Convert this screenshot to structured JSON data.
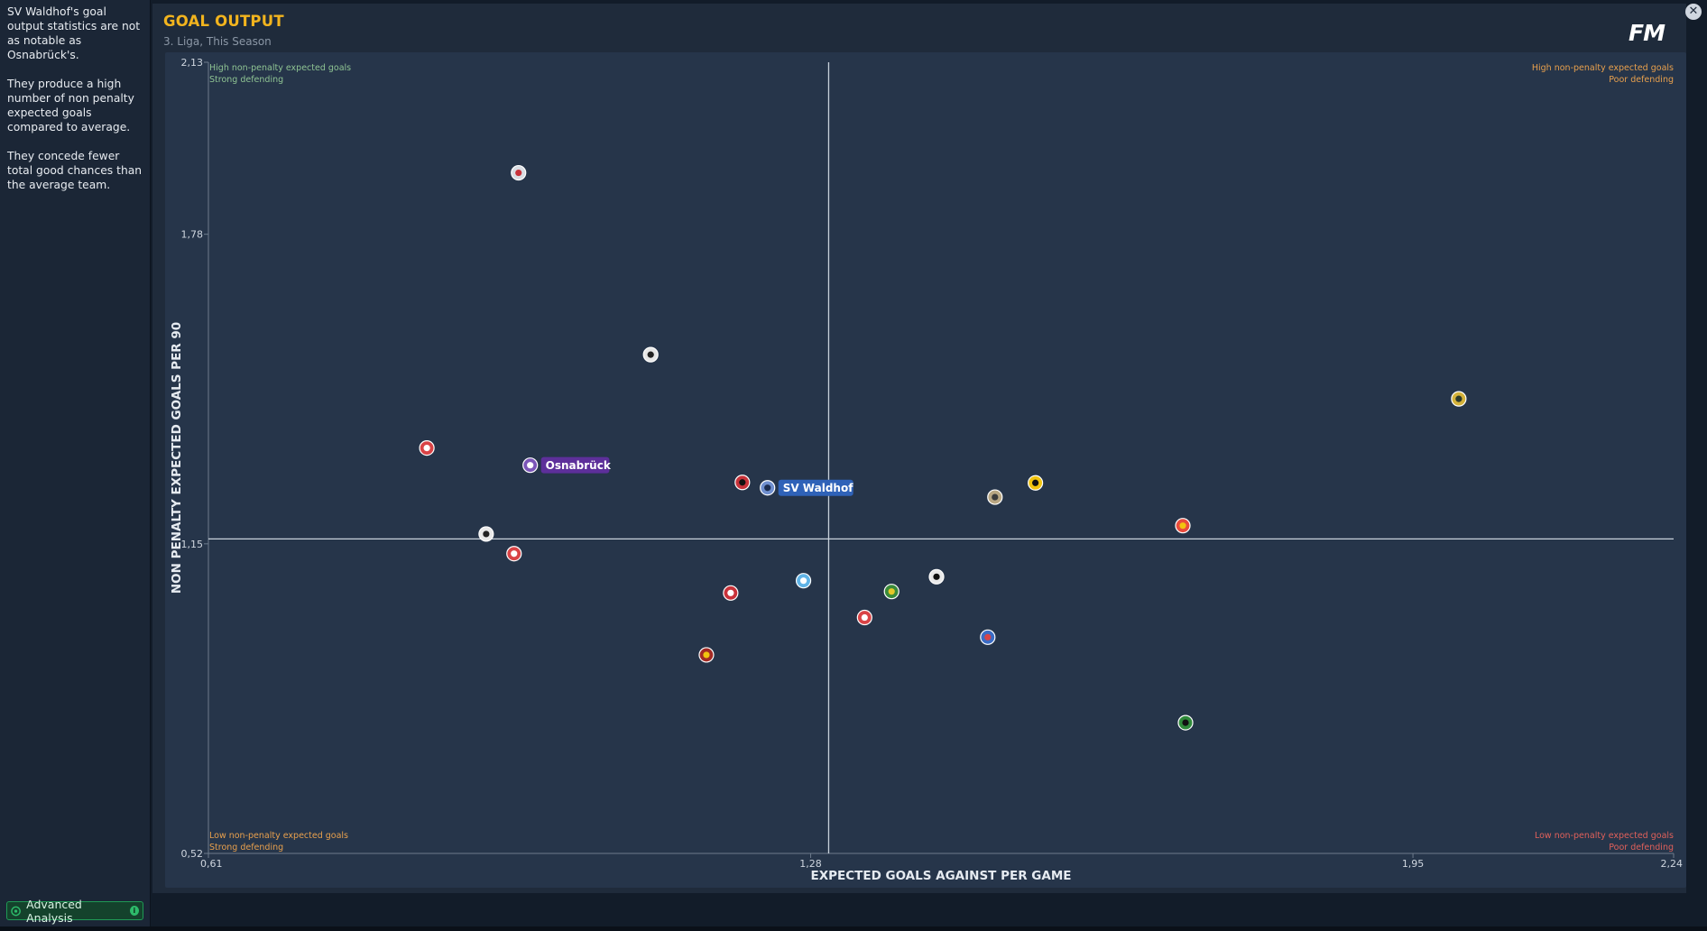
{
  "sidebar": {
    "insights": [
      "SV Waldhof's goal output statistics are not as notable as Osnabrück's.",
      "They produce a high number of non penalty expected goals compared to average.",
      "They concede fewer total good chances than the average team."
    ],
    "advanced_analysis_label": "Advanced Analysis"
  },
  "header": {
    "title": "GOAL OUTPUT",
    "subtitle": "3. Liga, This Season",
    "logo_text": "FM",
    "close_label": "✕"
  },
  "colors": {
    "title": "#f2b41e",
    "quad_good": "#8fc493",
    "quad_mid": "#e8a04d",
    "quad_bad": "#e0605a",
    "osnabruck_pill": "#5d2f9a",
    "waldhof_pill": "#2f62b8"
  },
  "chart_data": {
    "type": "scatter",
    "xlabel": "EXPECTED GOALS AGAINST PER GAME",
    "ylabel": "NON PENALTY EXPECTED GOALS PER 90",
    "xlim": [
      0.61,
      2.24
    ],
    "ylim": [
      0.52,
      2.13
    ],
    "x_ticks": [
      {
        "value": 0.61,
        "label": "0,61"
      },
      {
        "value": 1.28,
        "label": "1,28"
      },
      {
        "value": 1.95,
        "label": "1,95"
      },
      {
        "value": 2.24,
        "label": "2,24"
      }
    ],
    "y_ticks": [
      {
        "value": 0.52,
        "label": "0,52"
      },
      {
        "value": 1.15,
        "label": "1,15"
      },
      {
        "value": 1.78,
        "label": "1,78"
      },
      {
        "value": 2.13,
        "label": "2,13"
      }
    ],
    "average_lines": {
      "x": 1.3,
      "y": 1.16
    },
    "quadrants": {
      "top_left": [
        "High non-penalty expected goals",
        "Strong defending"
      ],
      "top_right": [
        "High non-penalty expected goals",
        "Poor defending"
      ],
      "bottom_left": [
        "Low non-penalty expected goals",
        "Strong defending"
      ],
      "bottom_right": [
        "Low non-penalty expected goals",
        "Poor defending"
      ]
    },
    "points": [
      {
        "x": 0.955,
        "y": 1.905,
        "color": "#d9dde3",
        "accent": "#c8323a"
      },
      {
        "x": 1.102,
        "y": 1.535,
        "color": "#e6e6e6",
        "accent": "#222222"
      },
      {
        "x": 2.001,
        "y": 1.445,
        "color": "#d4b23a",
        "accent": "#2c3a2c"
      },
      {
        "x": 0.853,
        "y": 1.345,
        "color": "#d94346",
        "accent": "#ffffff"
      },
      {
        "x": 0.968,
        "y": 1.31,
        "color": "#7b55b8",
        "accent": "#ffffff",
        "label": "Osnabrück",
        "pill": "osnabruck"
      },
      {
        "x": 1.204,
        "y": 1.275,
        "color": "#c8323a",
        "accent": "#111111"
      },
      {
        "x": 1.232,
        "y": 1.264,
        "color": "#6f8fcf",
        "accent": "#1d2d4f",
        "label": "SV Waldhof",
        "pill": "waldhof"
      },
      {
        "x": 1.53,
        "y": 1.274,
        "color": "#f1c40f",
        "accent": "#111111"
      },
      {
        "x": 1.485,
        "y": 1.245,
        "color": "#b9a783",
        "accent": "#3c3c3c"
      },
      {
        "x": 0.919,
        "y": 1.17,
        "color": "#e9e9e9",
        "accent": "#222222"
      },
      {
        "x": 0.95,
        "y": 1.13,
        "color": "#d94346",
        "accent": "#ffffff"
      },
      {
        "x": 1.694,
        "y": 1.187,
        "color": "#e94b3c",
        "accent": "#f1c40f"
      },
      {
        "x": 1.272,
        "y": 1.075,
        "color": "#5fb3e6",
        "accent": "#ffffff"
      },
      {
        "x": 1.42,
        "y": 1.083,
        "color": "#e9e9e9",
        "accent": "#111111"
      },
      {
        "x": 1.191,
        "y": 1.05,
        "color": "#c8323a",
        "accent": "#ffffff"
      },
      {
        "x": 1.37,
        "y": 1.053,
        "color": "#3a8a3a",
        "accent": "#e6c829"
      },
      {
        "x": 1.34,
        "y": 1.0,
        "color": "#d94346",
        "accent": "#ffffff"
      },
      {
        "x": 1.477,
        "y": 0.96,
        "color": "#3b6cc4",
        "accent": "#d94346"
      },
      {
        "x": 1.164,
        "y": 0.924,
        "color": "#a32a24",
        "accent": "#f1c40f"
      },
      {
        "x": 1.697,
        "y": 0.786,
        "color": "#2f8a3a",
        "accent": "#111111"
      }
    ]
  }
}
